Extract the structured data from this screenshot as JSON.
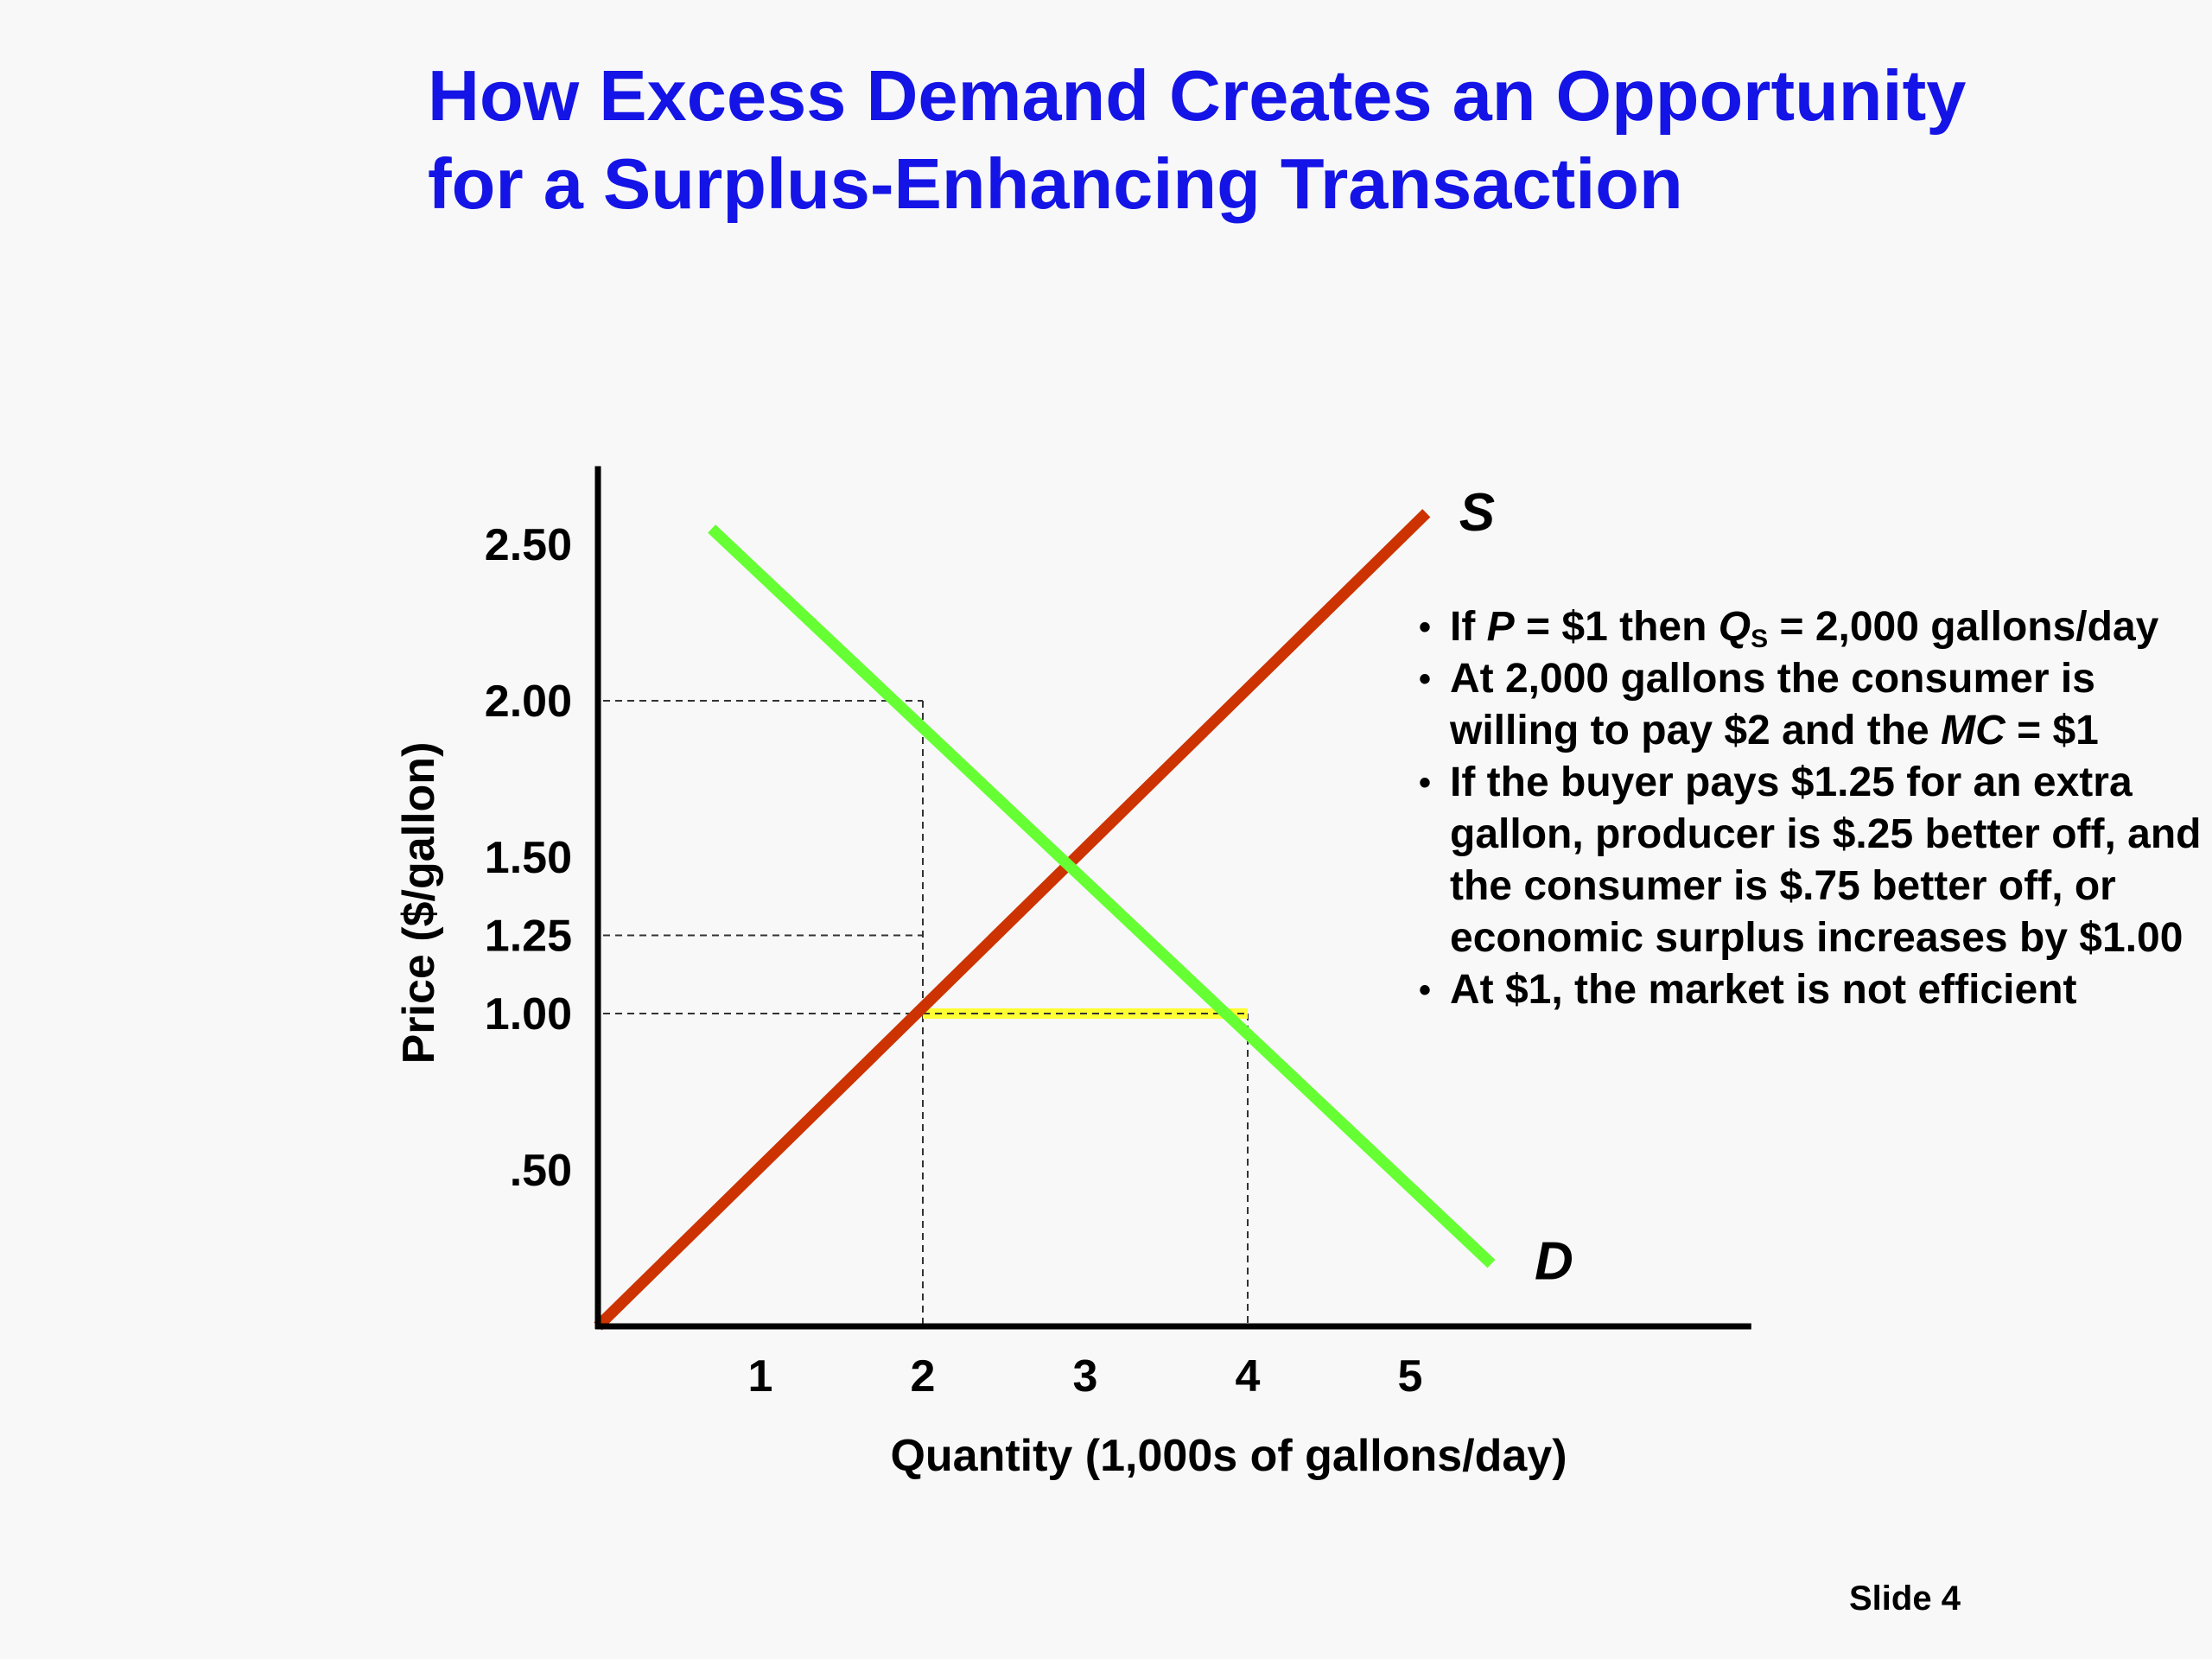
{
  "title": {
    "line1": "How Excess Demand Creates an Opportunity",
    "line2": "for a Surplus-Enhancing Transaction"
  },
  "chart_data": {
    "type": "line",
    "xlabel": "Quantity (1,000s of gallons/day)",
    "ylabel": "Price ($/gallon)",
    "x_ticks": [
      {
        "value": 1,
        "label": "1"
      },
      {
        "value": 2,
        "label": "2"
      },
      {
        "value": 3,
        "label": "3"
      },
      {
        "value": 4,
        "label": "4"
      },
      {
        "value": 5,
        "label": "5"
      }
    ],
    "y_ticks": [
      {
        "value": 0.5,
        "label": ".50"
      },
      {
        "value": 1.0,
        "label": "1.00"
      },
      {
        "value": 1.25,
        "label": "1.25"
      },
      {
        "value": 1.5,
        "label": "1.50"
      },
      {
        "value": 2.0,
        "label": "2.00"
      },
      {
        "value": 2.5,
        "label": "2.50"
      }
    ],
    "xlim": [
      0,
      7.1
    ],
    "ylim": [
      0,
      2.75
    ],
    "grid": false,
    "series": [
      {
        "name": "S",
        "color": "#cc3300",
        "points": [
          [
            0,
            0
          ],
          [
            5.1,
            2.6
          ]
        ]
      },
      {
        "name": "D",
        "color": "#66ff33",
        "points": [
          [
            0.7,
            2.55
          ],
          [
            5.5,
            0.2
          ]
        ]
      }
    ],
    "reference_lines": [
      {
        "from": [
          0,
          2.0
        ],
        "to": [
          2,
          2.0
        ]
      },
      {
        "from": [
          2,
          2.0
        ],
        "to": [
          2,
          0
        ]
      },
      {
        "from": [
          0,
          1.25
        ],
        "to": [
          2,
          1.25
        ]
      },
      {
        "from": [
          0,
          1.0
        ],
        "to": [
          2,
          1.0
        ]
      },
      {
        "from": [
          2,
          1.0
        ],
        "to": [
          4,
          1.0
        ]
      },
      {
        "from": [
          4,
          1.0
        ],
        "to": [
          4,
          0
        ]
      }
    ],
    "highlight": {
      "from": [
        2,
        1.0
      ],
      "to": [
        4,
        1.0
      ],
      "color": "#ffff33"
    }
  },
  "bullets": [
    [
      {
        "t": "If "
      },
      {
        "t": "P",
        "i": true
      },
      {
        "t": " =  $1 then "
      },
      {
        "t": "Q",
        "i": true
      },
      {
        "t": "S",
        "sub": true
      },
      {
        "t": "  = 2,000 gallons/day"
      }
    ],
    [
      {
        "t": "At 2,000 gallons the consumer is willing to pay $2 and the "
      },
      {
        "t": "MC",
        "i": true
      },
      {
        "t": " = $1"
      }
    ],
    [
      {
        "t": "If the buyer pays $1.25 for an extra gallon, producer is $.25 better off, and the consumer is $.75 better off, or economic surplus increases by $1.00"
      }
    ],
    [
      {
        "t": "At $1, the market is not efficient"
      }
    ]
  ],
  "slide_number": "Slide 4"
}
